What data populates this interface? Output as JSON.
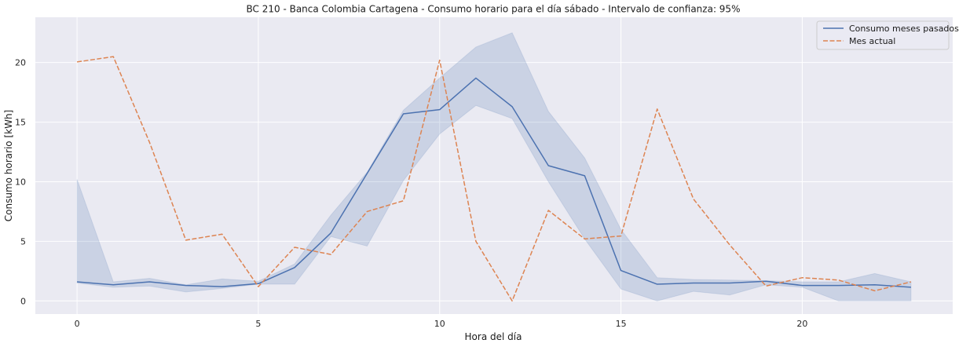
{
  "chart_data": {
    "type": "line",
    "title": "BC 210 - Banca Colombia Cartagena - Consumo horario para el día sábado - Intervalo de confianza: 95%",
    "xlabel": "Hora del día",
    "ylabel": "Consumo horario [kWh]",
    "xlim": [
      -1.15,
      24.15
    ],
    "ylim": [
      -1.1,
      23.8
    ],
    "x_ticks": [
      0,
      5,
      10,
      15,
      20
    ],
    "y_ticks": [
      0,
      5,
      10,
      15,
      20
    ],
    "grid": true,
    "legend_position": "top-right",
    "x": [
      0,
      1,
      2,
      3,
      4,
      5,
      6,
      7,
      8,
      9,
      10,
      11,
      12,
      13,
      14,
      15,
      16,
      17,
      18,
      19,
      20,
      21,
      22,
      23
    ],
    "series": [
      {
        "name": "Consumo meses pasados",
        "style": "solid",
        "color": "#4c72b0",
        "values": [
          1.6,
          1.35,
          1.6,
          1.3,
          1.2,
          1.45,
          2.8,
          5.7,
          10.7,
          15.7,
          16.05,
          18.7,
          16.3,
          11.35,
          10.5,
          2.55,
          1.4,
          1.5,
          1.5,
          1.65,
          1.3,
          1.3,
          1.35,
          1.15
        ],
        "ci_lower": [
          1.5,
          1.15,
          1.25,
          0.75,
          1.05,
          1.4,
          1.4,
          5.4,
          4.6,
          10.1,
          14.0,
          16.4,
          15.3,
          10.0,
          5.2,
          1.0,
          0.0,
          0.8,
          0.5,
          1.35,
          1.15,
          0.0,
          0.0,
          0.0
        ],
        "ci_upper": [
          10.2,
          1.6,
          1.9,
          1.35,
          1.85,
          1.65,
          3.1,
          7.2,
          10.8,
          16.0,
          18.7,
          21.3,
          22.5,
          15.9,
          12.0,
          6.0,
          1.95,
          1.8,
          1.75,
          1.7,
          1.6,
          1.6,
          2.3,
          1.6
        ]
      },
      {
        "name": "Mes actual",
        "style": "dashed",
        "color": "#dd8452",
        "values": [
          20.05,
          20.5,
          13.3,
          5.1,
          5.6,
          1.2,
          4.5,
          3.9,
          7.5,
          8.4,
          20.2,
          5.0,
          0.0,
          7.6,
          5.2,
          5.45,
          16.1,
          8.55,
          4.7,
          1.25,
          1.95,
          1.75,
          0.85,
          1.6
        ]
      }
    ]
  }
}
